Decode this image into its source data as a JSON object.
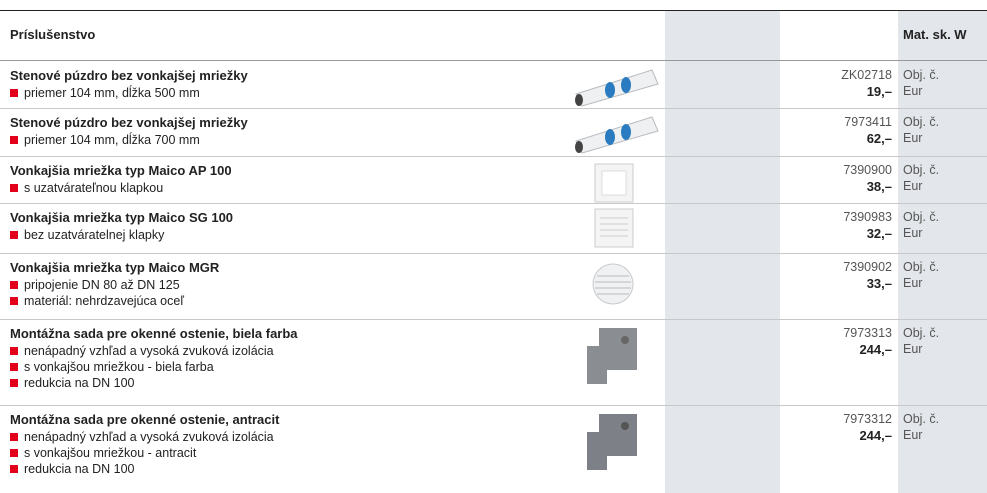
{
  "header": {
    "title": "Príslušenstvo",
    "column": "Mat. sk. W"
  },
  "rows": [
    {
      "title": "Stenové púzdro bez vonkajšej mriežky",
      "bullets": [
        "priemer 104 mm, dĺžka 500 mm"
      ],
      "code": "ZK02718",
      "price": "19,–",
      "code_label": "Obj. č.",
      "price_label": "Eur"
    },
    {
      "title": "Stenové púzdro bez vonkajšej mriežky",
      "bullets": [
        "priemer 104 mm, dĺžka 700 mm"
      ],
      "code": "7973411",
      "price": "62,–",
      "code_label": "Obj. č.",
      "price_label": "Eur"
    },
    {
      "title": "Vonkajšia mriežka typ Maico AP 100",
      "bullets": [
        "s uzatvárateľnou klapkou"
      ],
      "code": "7390900",
      "price": "38,–",
      "code_label": "Obj. č.",
      "price_label": "Eur"
    },
    {
      "title": "Vonkajšia mriežka typ Maico SG 100",
      "bullets": [
        "bez uzatváratelnej klapky"
      ],
      "code": "7390983",
      "price": "32,–",
      "code_label": "Obj. č.",
      "price_label": "Eur"
    },
    {
      "title": "Vonkajšia mriežka typ Maico MGR",
      "bullets": [
        "pripojenie DN 80 až DN 125",
        "materiál: nehrdzavejúca oceľ"
      ],
      "code": "7390902",
      "price": "33,–",
      "code_label": "Obj. č.",
      "price_label": "Eur"
    },
    {
      "title": "Montážna sada pre okenné ostenie, biela farba",
      "bullets": [
        "nenápadný vzhľad a vysoká zvuková izolácia",
        "s vonkajšou mriežkou - biela farba",
        "redukcia na DN 100"
      ],
      "code": "7973313",
      "price": "244,–",
      "code_label": "Obj. č.",
      "price_label": "Eur"
    },
    {
      "title": "Montážna sada pre okenné ostenie, antracit",
      "bullets": [
        "nenápadný vzhľad a vysoká zvuková izolácia",
        "s vonkajšou mriežkou - antracit",
        "redukcia na DN 100"
      ],
      "code": "7973312",
      "price": "244,–",
      "code_label": "Obj. č.",
      "price_label": "Eur"
    }
  ]
}
